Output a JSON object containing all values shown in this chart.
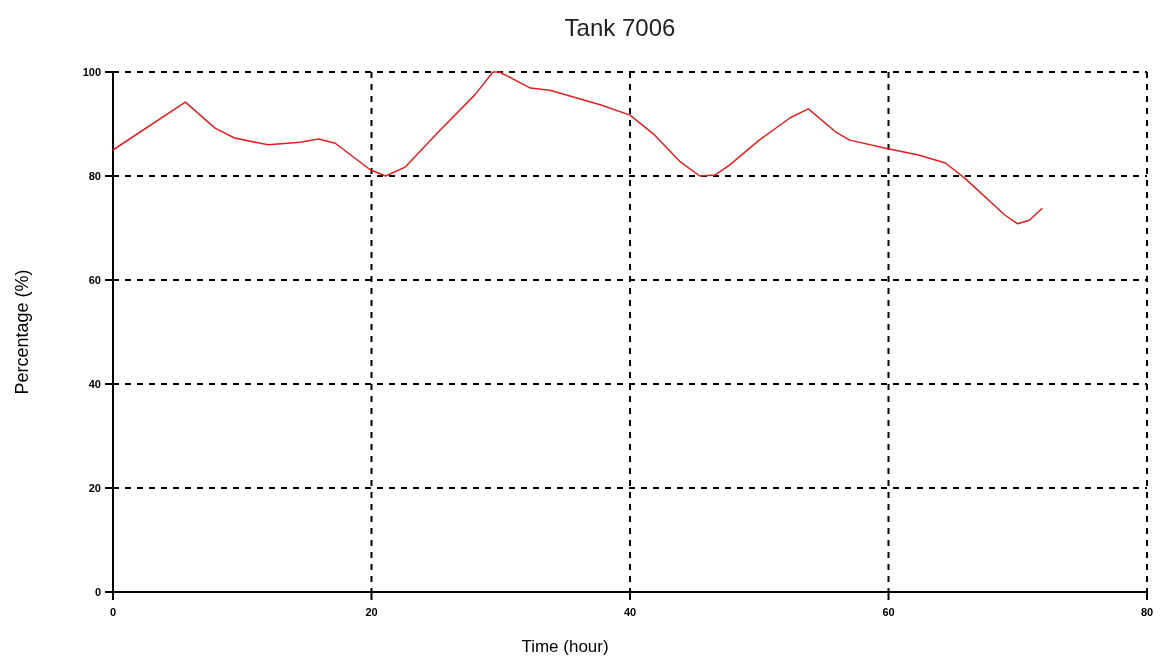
{
  "chart_data": {
    "type": "line",
    "title": "Tank 7006",
    "xlabel": "Time (hour)",
    "ylabel": "Percentage (%)",
    "xlim": [
      0,
      80
    ],
    "xticks": [
      0,
      20,
      40,
      60,
      80
    ],
    "ylim": [
      0,
      100
    ],
    "yticks": [
      0,
      20,
      40,
      60,
      80,
      100
    ],
    "grid": true,
    "line_style": "solid",
    "series": [
      {
        "color": "#e02020",
        "x": [
          0,
          5.6,
          7.9,
          9.4,
          12,
          14.5,
          15.9,
          17.2,
          19.9,
          21.1,
          22.6,
          25.3,
          28,
          29.4,
          29.9,
          32.3,
          33.8,
          37.7,
          40,
          41.9,
          43.9,
          45.4,
          46.6,
          47.7,
          50,
          52.4,
          53.8,
          55.9,
          57,
          59.7,
          62.4,
          64.4,
          65.9,
          69,
          70,
          70.9,
          71.9
        ],
        "values": [
          85,
          94.2,
          89.2,
          87.3,
          86,
          86.5,
          87.1,
          86.3,
          81.2,
          80,
          81.7,
          88.8,
          95.6,
          100,
          100,
          96.9,
          96.5,
          93.7,
          91.7,
          87.9,
          82.7,
          80,
          80.2,
          82.1,
          86.9,
          91.2,
          92.9,
          88.5,
          86.9,
          85.4,
          84,
          82.5,
          79.6,
          72.5,
          70.8,
          71.5,
          73.8
        ]
      }
    ]
  }
}
